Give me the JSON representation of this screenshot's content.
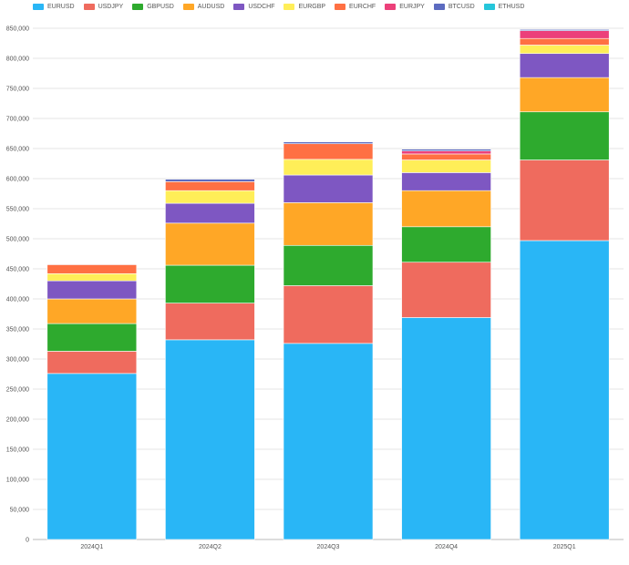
{
  "chart_data": {
    "type": "bar",
    "stacked": true,
    "categories": [
      "2024Q1",
      "2024Q2",
      "2024Q3",
      "2024Q4",
      "2025Q1"
    ],
    "series": [
      {
        "name": "EURUSD",
        "color": "#29b6f6",
        "values": [
          276000,
          332000,
          326000,
          369000,
          497000
        ]
      },
      {
        "name": "USDJPY",
        "color": "#ef6b5e",
        "values": [
          37000,
          61000,
          96000,
          92000,
          134000
        ]
      },
      {
        "name": "GBPUSD",
        "color": "#2eaa2e",
        "values": [
          46000,
          63000,
          67000,
          59000,
          80000
        ]
      },
      {
        "name": "AUDUSD",
        "color": "#ffa726",
        "values": [
          41000,
          70000,
          71000,
          60000,
          57000
        ]
      },
      {
        "name": "USDCHF",
        "color": "#7e57c2",
        "values": [
          30000,
          33000,
          46000,
          30000,
          40000
        ]
      },
      {
        "name": "EURGBP",
        "color": "#ffee58",
        "values": [
          12000,
          21000,
          26000,
          21000,
          14000
        ]
      },
      {
        "name": "EURCHF",
        "color": "#ff7043",
        "values": [
          15000,
          15000,
          26000,
          10000,
          11000
        ]
      },
      {
        "name": "EURJPY",
        "color": "#ec407a",
        "values": [
          0,
          0,
          0,
          5000,
          13000
        ]
      },
      {
        "name": "BTCUSD",
        "color": "#5c6bc0",
        "values": [
          1000,
          4000,
          3000,
          3000,
          2000
        ]
      },
      {
        "name": "ETHUSD",
        "color": "#26c6da",
        "values": [
          0,
          0,
          0,
          0,
          0
        ]
      }
    ],
    "ylim": [
      0,
      850000
    ],
    "yticks": [
      "0",
      "50,000",
      "100,000",
      "150,000",
      "200,000",
      "250,000",
      "300,000",
      "350,000",
      "400,000",
      "450,000",
      "500,000",
      "550,000",
      "600,000",
      "650,000",
      "700,000",
      "750,000",
      "800,000",
      "850,000"
    ],
    "title": "",
    "xlabel": "",
    "ylabel": "",
    "grid": true,
    "legend_position": "top"
  }
}
